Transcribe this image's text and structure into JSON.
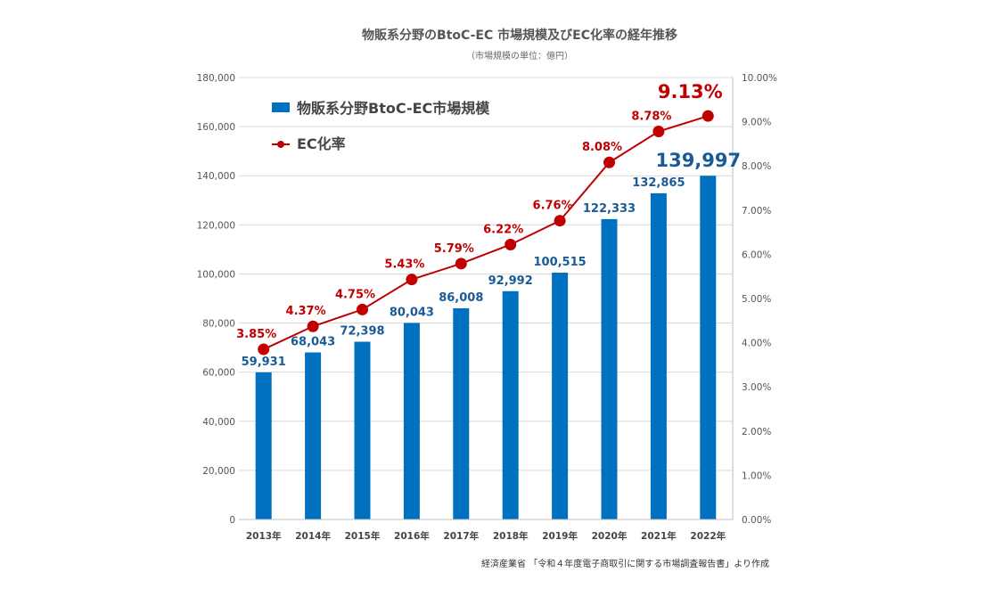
{
  "chart_data": {
    "type": "bar+line",
    "title": "物販系分野のBtoC-EC 市場規模及びEC化率の経年推移",
    "subtitle": "（市場規模の単位：億円）",
    "categories": [
      "2013年",
      "2014年",
      "2015年",
      "2016年",
      "2017年",
      "2018年",
      "2019年",
      "2020年",
      "2021年",
      "2022年"
    ],
    "series": [
      {
        "name": "物販系分野BtoC-EC市場規模",
        "type": "bar",
        "axis": "left",
        "color": "#0070c0",
        "values": [
          59931,
          68043,
          72398,
          80043,
          86008,
          92992,
          100515,
          122333,
          132865,
          139997
        ],
        "labels": [
          "59,931",
          "68,043",
          "72,398",
          "80,043",
          "86,008",
          "92,992",
          "100,515",
          "122,333",
          "132,865",
          "139,997"
        ]
      },
      {
        "name": "EC化率",
        "type": "line",
        "axis": "right",
        "color": "#c00000",
        "values": [
          3.85,
          4.37,
          4.75,
          5.43,
          5.79,
          6.22,
          6.76,
          8.08,
          8.78,
          9.13
        ],
        "labels": [
          "3.85%",
          "4.37%",
          "4.75%",
          "5.43%",
          "5.79%",
          "6.22%",
          "6.76%",
          "8.08%",
          "8.78%",
          "9.13%"
        ]
      }
    ],
    "y_left": {
      "ylim": [
        0,
        180000
      ],
      "ticks": [
        0,
        20000,
        40000,
        60000,
        80000,
        100000,
        120000,
        140000,
        160000,
        180000
      ],
      "tick_labels": [
        "0",
        "20,000",
        "40,000",
        "60,000",
        "80,000",
        "100,000",
        "120,000",
        "140,000",
        "160,000",
        "180,000"
      ]
    },
    "y_right": {
      "ylim": [
        0,
        10
      ],
      "ticks": [
        0,
        1,
        2,
        3,
        4,
        5,
        6,
        7,
        8,
        9,
        10
      ],
      "tick_labels": [
        "0.00%",
        "1.00%",
        "2.00%",
        "3.00%",
        "4.00%",
        "5.00%",
        "6.00%",
        "7.00%",
        "8.00%",
        "9.00%",
        "10.00%"
      ]
    },
    "grid": true,
    "legend_position": "top-left"
  },
  "source_note": "経済産業省 「令和４年度電子商取引に関する市場調査報告書」より作成"
}
